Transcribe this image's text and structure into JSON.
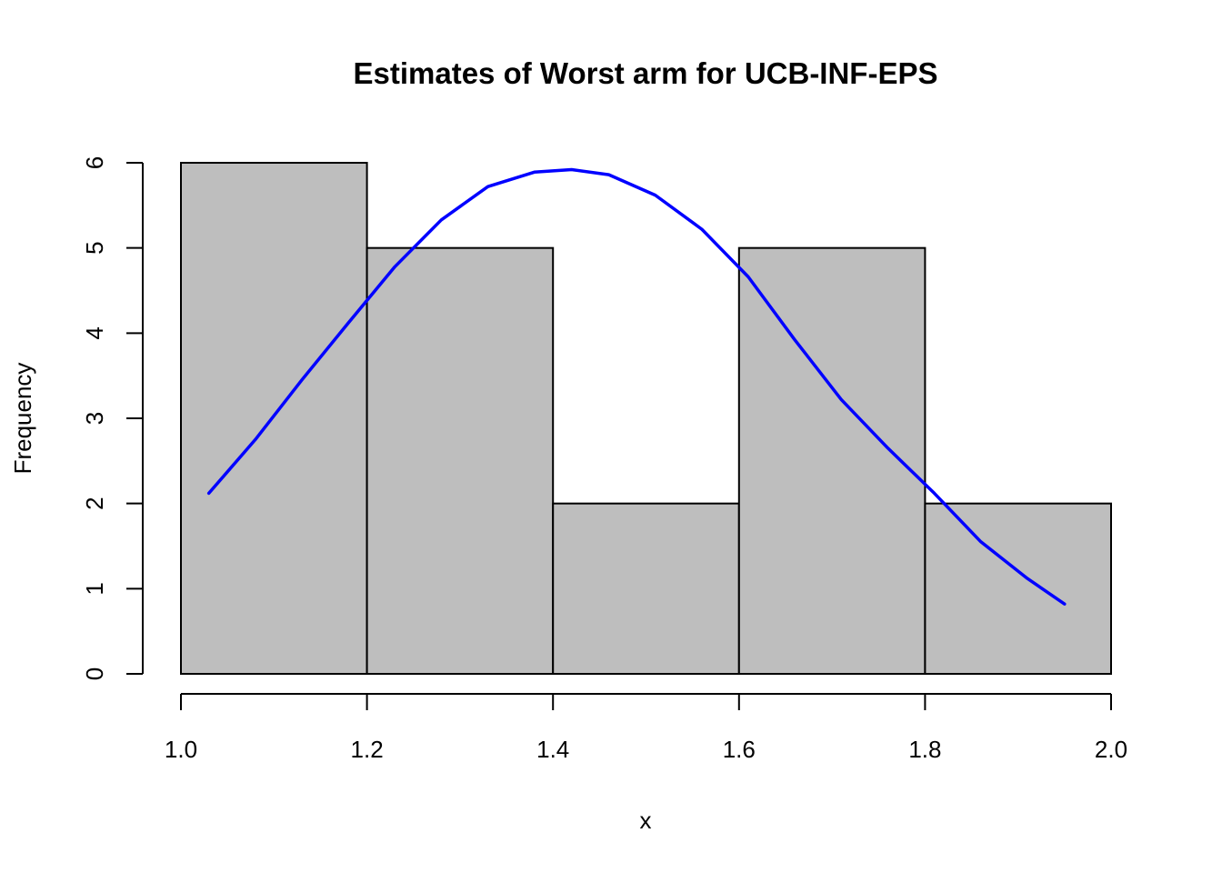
{
  "chart_data": {
    "type": "bar",
    "title": "Estimates of Worst arm for UCB-INF-EPS",
    "xlabel": "x",
    "ylabel": "Frequency",
    "bins": [
      {
        "start": 1.0,
        "end": 1.2,
        "count": 6
      },
      {
        "start": 1.2,
        "end": 1.4,
        "count": 5
      },
      {
        "start": 1.4,
        "end": 1.6,
        "count": 2
      },
      {
        "start": 1.6,
        "end": 1.8,
        "count": 5
      },
      {
        "start": 1.8,
        "end": 2.0,
        "count": 2
      }
    ],
    "xlim": [
      1.0,
      2.0
    ],
    "ylim": [
      0,
      6
    ],
    "x_ticks": [
      "1.0",
      "1.2",
      "1.4",
      "1.6",
      "1.8",
      "2.0"
    ],
    "y_ticks": [
      "0",
      "1",
      "2",
      "3",
      "4",
      "5",
      "6"
    ],
    "bar_color": "#bebebe",
    "overlay_curve": {
      "type": "line",
      "color": "#0000ff",
      "x": [
        1.03,
        1.08,
        1.13,
        1.18,
        1.23,
        1.28,
        1.33,
        1.38,
        1.42,
        1.46,
        1.51,
        1.56,
        1.61,
        1.66,
        1.71,
        1.76,
        1.81,
        1.86,
        1.91,
        1.95
      ],
      "y": [
        2.12,
        2.75,
        3.45,
        4.12,
        4.78,
        5.33,
        5.72,
        5.89,
        5.92,
        5.86,
        5.62,
        5.22,
        4.66,
        3.92,
        3.22,
        2.65,
        2.12,
        1.55,
        1.12,
        0.82
      ]
    },
    "grid": false,
    "legend": "none"
  }
}
